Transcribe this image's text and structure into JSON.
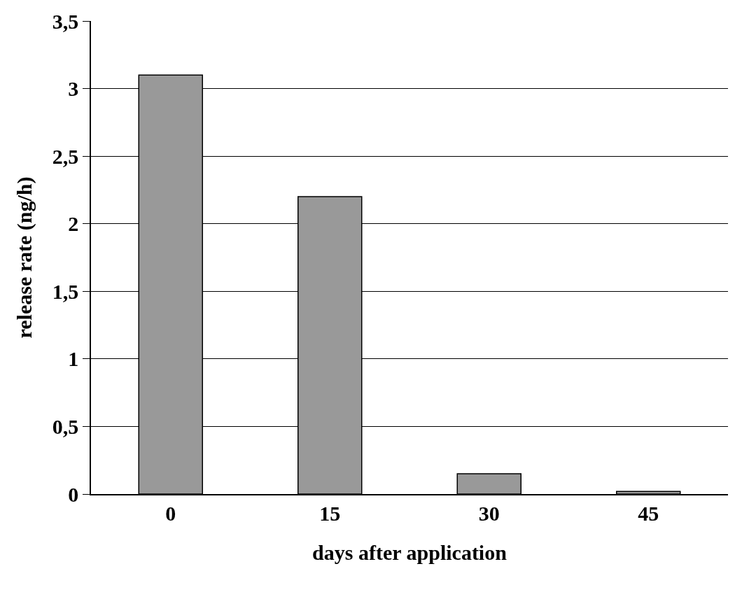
{
  "chart_data": {
    "type": "bar",
    "xlabel": "days after application",
    "ylabel": "release rate (ng/h)",
    "categories": [
      "0",
      "15",
      "30",
      "45"
    ],
    "values": [
      3.1,
      2.2,
      0.15,
      0.02
    ],
    "color": "#999999",
    "ylim": [
      0,
      3.5
    ],
    "yticks": [
      0,
      {
        "value": 0.5,
        "label": "0,5"
      },
      1,
      {
        "value": 1.5,
        "label": "1,5"
      },
      2,
      {
        "value": 2.5,
        "label": "2,5"
      },
      3,
      {
        "value": 3.5,
        "label": "3,5"
      }
    ],
    "grid": "y"
  }
}
